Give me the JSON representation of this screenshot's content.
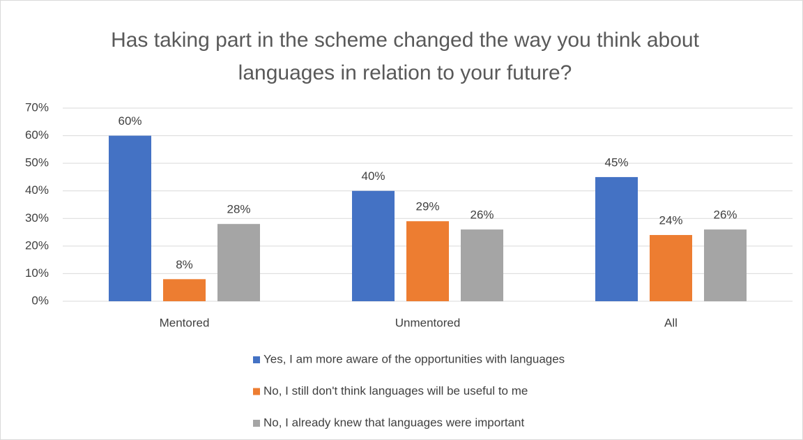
{
  "chart_data": {
    "type": "bar",
    "title": "Has taking part in the scheme changed the way you think about languages in relation to your future?",
    "categories": [
      "Mentored",
      "Unmentored",
      "All"
    ],
    "series": [
      {
        "name": "Yes, I am more aware of the opportunities with languages",
        "color": "#4472c4",
        "values": [
          60,
          40,
          45
        ],
        "value_labels": [
          "60%",
          "40%",
          "45%"
        ]
      },
      {
        "name": "No, I still don't think languages will be useful to me",
        "color": "#ed7d31",
        "values": [
          8,
          29,
          24
        ],
        "value_labels": [
          "8%",
          "29%",
          "24%"
        ]
      },
      {
        "name": "No, I already knew that languages were important",
        "color": "#a5a5a5",
        "values": [
          28,
          26,
          26
        ],
        "value_labels": [
          "28%",
          "26%",
          "26%"
        ]
      }
    ],
    "ylim": [
      0,
      70
    ],
    "yticks": [
      {
        "value": 0,
        "label": "0%"
      },
      {
        "value": 10,
        "label": "10%"
      },
      {
        "value": 20,
        "label": "20%"
      },
      {
        "value": 30,
        "label": "30%"
      },
      {
        "value": 40,
        "label": "40%"
      },
      {
        "value": 50,
        "label": "50%"
      },
      {
        "value": 60,
        "label": "60%"
      },
      {
        "value": 70,
        "label": "70%"
      }
    ],
    "grid": true,
    "legend": "bottom"
  }
}
